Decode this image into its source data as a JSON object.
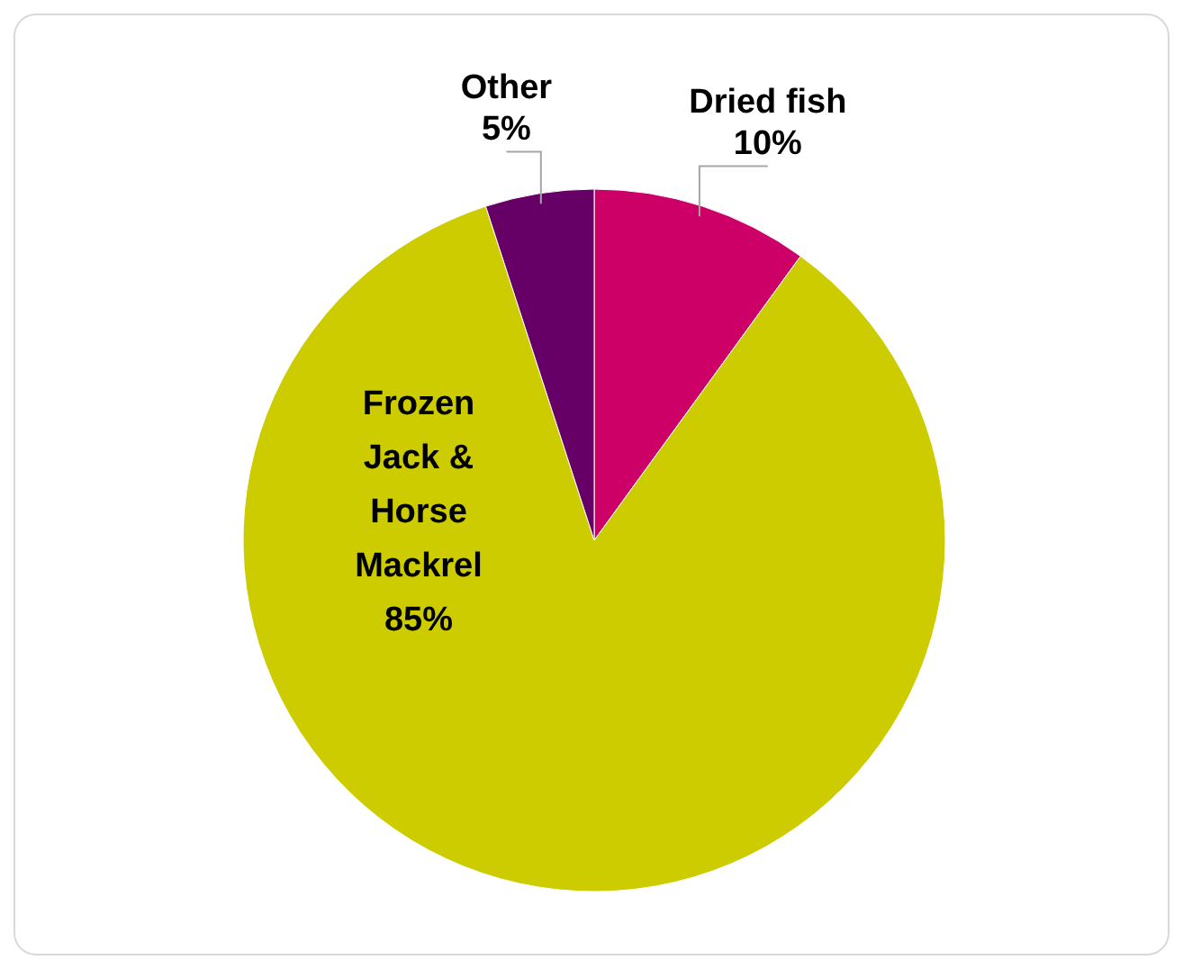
{
  "chart_data": {
    "type": "pie",
    "categories": [
      "Dried fish",
      "Frozen Jack & Horse Mackrel",
      "Other"
    ],
    "values": [
      10,
      85,
      5
    ],
    "colors": [
      "#cc0066",
      "#cccc00",
      "#660066"
    ],
    "value_labels": [
      "10%",
      "85%",
      "5%"
    ]
  }
}
